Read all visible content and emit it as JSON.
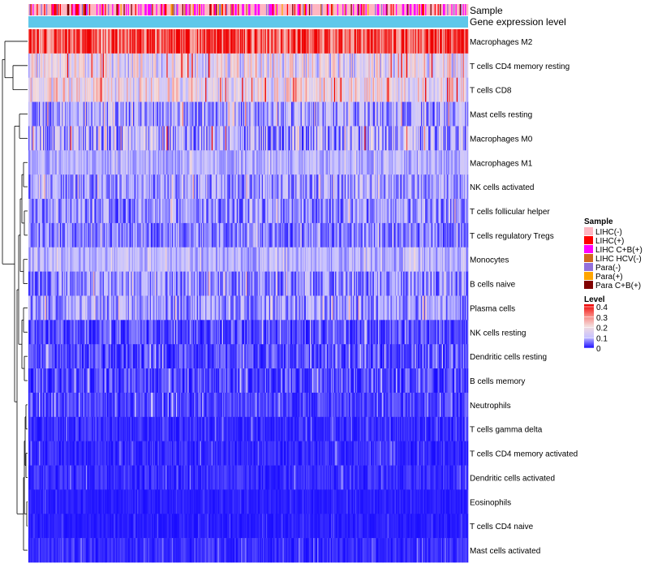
{
  "chart_data": {
    "type": "heatmap",
    "title": "",
    "annotation_tracks": [
      "Sample",
      "Gene expression level"
    ],
    "rows": [
      {
        "label": "Macrophages M2",
        "mean": 0.3,
        "spread": 0.12
      },
      {
        "label": "T cells CD4 memory resting",
        "mean": 0.13,
        "spread": 0.1
      },
      {
        "label": "T cells CD8",
        "mean": 0.15,
        "spread": 0.1
      },
      {
        "label": "Mast cells resting",
        "mean": 0.06,
        "spread": 0.07
      },
      {
        "label": "Macrophages M0",
        "mean": 0.07,
        "spread": 0.1
      },
      {
        "label": "Macrophages M1",
        "mean": 0.08,
        "spread": 0.04
      },
      {
        "label": "NK cells activated",
        "mean": 0.06,
        "spread": 0.06
      },
      {
        "label": "T cells follicular helper",
        "mean": 0.05,
        "spread": 0.06
      },
      {
        "label": "T cells regulatory  Tregs",
        "mean": 0.04,
        "spread": 0.05
      },
      {
        "label": "Monocytes",
        "mean": 0.08,
        "spread": 0.04
      },
      {
        "label": "B cells naive",
        "mean": 0.05,
        "spread": 0.06
      },
      {
        "label": "Plasma cells",
        "mean": 0.06,
        "spread": 0.06
      },
      {
        "label": "NK cells resting",
        "mean": 0.02,
        "spread": 0.04
      },
      {
        "label": "Dendritic cells resting",
        "mean": 0.02,
        "spread": 0.04
      },
      {
        "label": "B cells memory",
        "mean": 0.02,
        "spread": 0.04
      },
      {
        "label": "Neutrophils",
        "mean": 0.02,
        "spread": 0.03
      },
      {
        "label": "T cells gamma delta",
        "mean": 0.01,
        "spread": 0.02
      },
      {
        "label": "T cells CD4 memory activated",
        "mean": 0.01,
        "spread": 0.02
      },
      {
        "label": "Dendritic cells activated",
        "mean": 0.01,
        "spread": 0.02
      },
      {
        "label": "Eosinophils",
        "mean": 0.005,
        "spread": 0.01
      },
      {
        "label": "T cells CD4 naive",
        "mean": 0.005,
        "spread": 0.01
      },
      {
        "label": "Mast cells activated",
        "mean": 0.01,
        "spread": 0.02
      }
    ],
    "n_columns": 420,
    "sample_group_weights": [
      0.55,
      0.1,
      0.2,
      0.03,
      0.05,
      0.03,
      0.04
    ],
    "color_scale": {
      "min": 0,
      "max": 0.4,
      "stops": [
        {
          "value": 0,
          "color": "#1a0dff"
        },
        {
          "value": 0.1,
          "color": "#c8c3ff"
        },
        {
          "value": 0.2,
          "color": "#f4dcdc"
        },
        {
          "value": 0.3,
          "color": "#f8807a"
        },
        {
          "value": 0.4,
          "color": "#ee0000"
        }
      ]
    },
    "gene_expression_level_color": "#5fc8ea",
    "legend": {
      "position": "right",
      "sample": {
        "title": "Sample",
        "items": [
          {
            "label": "LIHC(-)",
            "color": "#ffb6c1"
          },
          {
            "label": "LIHC(+)",
            "color": "#ff0000"
          },
          {
            "label": "LIHC C+B(+)",
            "color": "#ff00ff"
          },
          {
            "label": "LIHC HCV(-)",
            "color": "#d2691e"
          },
          {
            "label": "Para(-)",
            "color": "#9370db"
          },
          {
            "label": "Para(+)",
            "color": "#ffa500"
          },
          {
            "label": "Para C+B(+)",
            "color": "#800000"
          }
        ]
      },
      "level": {
        "title": "Level",
        "ticks": [
          "0.4",
          "0.3",
          "0.2",
          "0.1",
          "0"
        ]
      }
    }
  }
}
